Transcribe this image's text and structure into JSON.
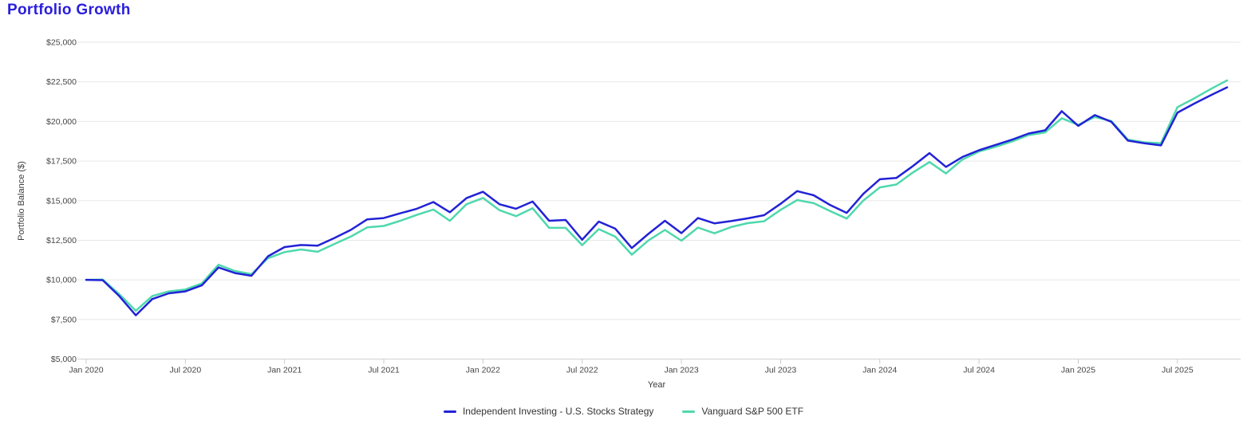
{
  "page": {
    "title": "Portfolio Growth"
  },
  "colors": {
    "title": "#2a1edb",
    "axis_text": "#444444",
    "axis_line": "#d2d2d2",
    "tick_mark": "#c9c9c9",
    "gridline": "#e7e7e7",
    "background": "#ffffff",
    "legend_text": "#333333",
    "series_blue": "#2222d6",
    "series_teal": "#4fd8ad"
  },
  "chart_data": {
    "type": "line",
    "title": "Portfolio Growth",
    "xlabel": "Year",
    "ylabel": "Portfolio Balance ($)",
    "x_unit": "month",
    "x_start": "Jan 2020",
    "x_end": "Oct 2025",
    "n_points": 70,
    "ylim": [
      5000,
      25000
    ],
    "grid": "horizontal",
    "legend_position": "bottom-center",
    "y_ticks": [
      {
        "value": 25000,
        "label": "$25,000"
      },
      {
        "value": 22500,
        "label": "$22,500"
      },
      {
        "value": 20000,
        "label": "$20,000"
      },
      {
        "value": 17500,
        "label": "$17,500"
      },
      {
        "value": 15000,
        "label": "$15,000"
      },
      {
        "value": 12500,
        "label": "$12,500"
      },
      {
        "value": 10000,
        "label": "$10,000"
      },
      {
        "value": 7500,
        "label": "$7,500"
      },
      {
        "value": 5000,
        "label": "$5,000"
      }
    ],
    "x_ticks": [
      {
        "month_index": 0,
        "label": "Jan 2020"
      },
      {
        "month_index": 6,
        "label": "Jul 2020"
      },
      {
        "month_index": 12,
        "label": "Jan 2021"
      },
      {
        "month_index": 18,
        "label": "Jul 2021"
      },
      {
        "month_index": 24,
        "label": "Jan 2022"
      },
      {
        "month_index": 30,
        "label": "Jul 2022"
      },
      {
        "month_index": 36,
        "label": "Jan 2023"
      },
      {
        "month_index": 42,
        "label": "Jul 2023"
      },
      {
        "month_index": 48,
        "label": "Jan 2024"
      },
      {
        "month_index": 54,
        "label": "Jul 2024"
      },
      {
        "month_index": 60,
        "label": "Jan 2025"
      },
      {
        "month_index": 66,
        "label": "Jul 2025"
      }
    ],
    "series": [
      {
        "name": "Independent Investing - U.S. Stocks Strategy",
        "color": "#2222d6",
        "values": [
          10000,
          9980,
          8980,
          7760,
          8790,
          9150,
          9270,
          9660,
          10780,
          10430,
          10260,
          11490,
          12070,
          12200,
          12160,
          12640,
          13150,
          13820,
          13900,
          14200,
          14490,
          14910,
          14270,
          15160,
          15560,
          14770,
          14490,
          14940,
          13730,
          13780,
          12530,
          13680,
          13230,
          12010,
          12900,
          13730,
          12950,
          13900,
          13570,
          13710,
          13880,
          14080,
          14800,
          15600,
          15340,
          14720,
          14230,
          15430,
          16350,
          16430,
          17180,
          18000,
          17130,
          17760,
          18180,
          18520,
          18850,
          19240,
          19440,
          20650,
          19720,
          20400,
          19980,
          18790,
          18620,
          18490,
          20550,
          21120,
          21650,
          22150
        ]
      },
      {
        "name": "Vanguard S&P 500 ETF",
        "color": "#4fd8ad",
        "values": [
          10000,
          10020,
          9100,
          8050,
          8980,
          9270,
          9390,
          9780,
          10950,
          10560,
          10360,
          11370,
          11750,
          11920,
          11770,
          12260,
          12730,
          13310,
          13400,
          13730,
          14100,
          14440,
          13730,
          14770,
          15170,
          14400,
          14020,
          14520,
          13280,
          13280,
          12190,
          13200,
          12730,
          11590,
          12480,
          13150,
          12470,
          13300,
          12940,
          13330,
          13580,
          13700,
          14420,
          15040,
          14840,
          14340,
          13870,
          15010,
          15840,
          16020,
          16780,
          17440,
          16720,
          17600,
          18100,
          18400,
          18740,
          19140,
          19310,
          20200,
          19780,
          20280,
          20030,
          18850,
          18680,
          18620,
          20900,
          21450,
          22040,
          22590
        ]
      }
    ]
  }
}
